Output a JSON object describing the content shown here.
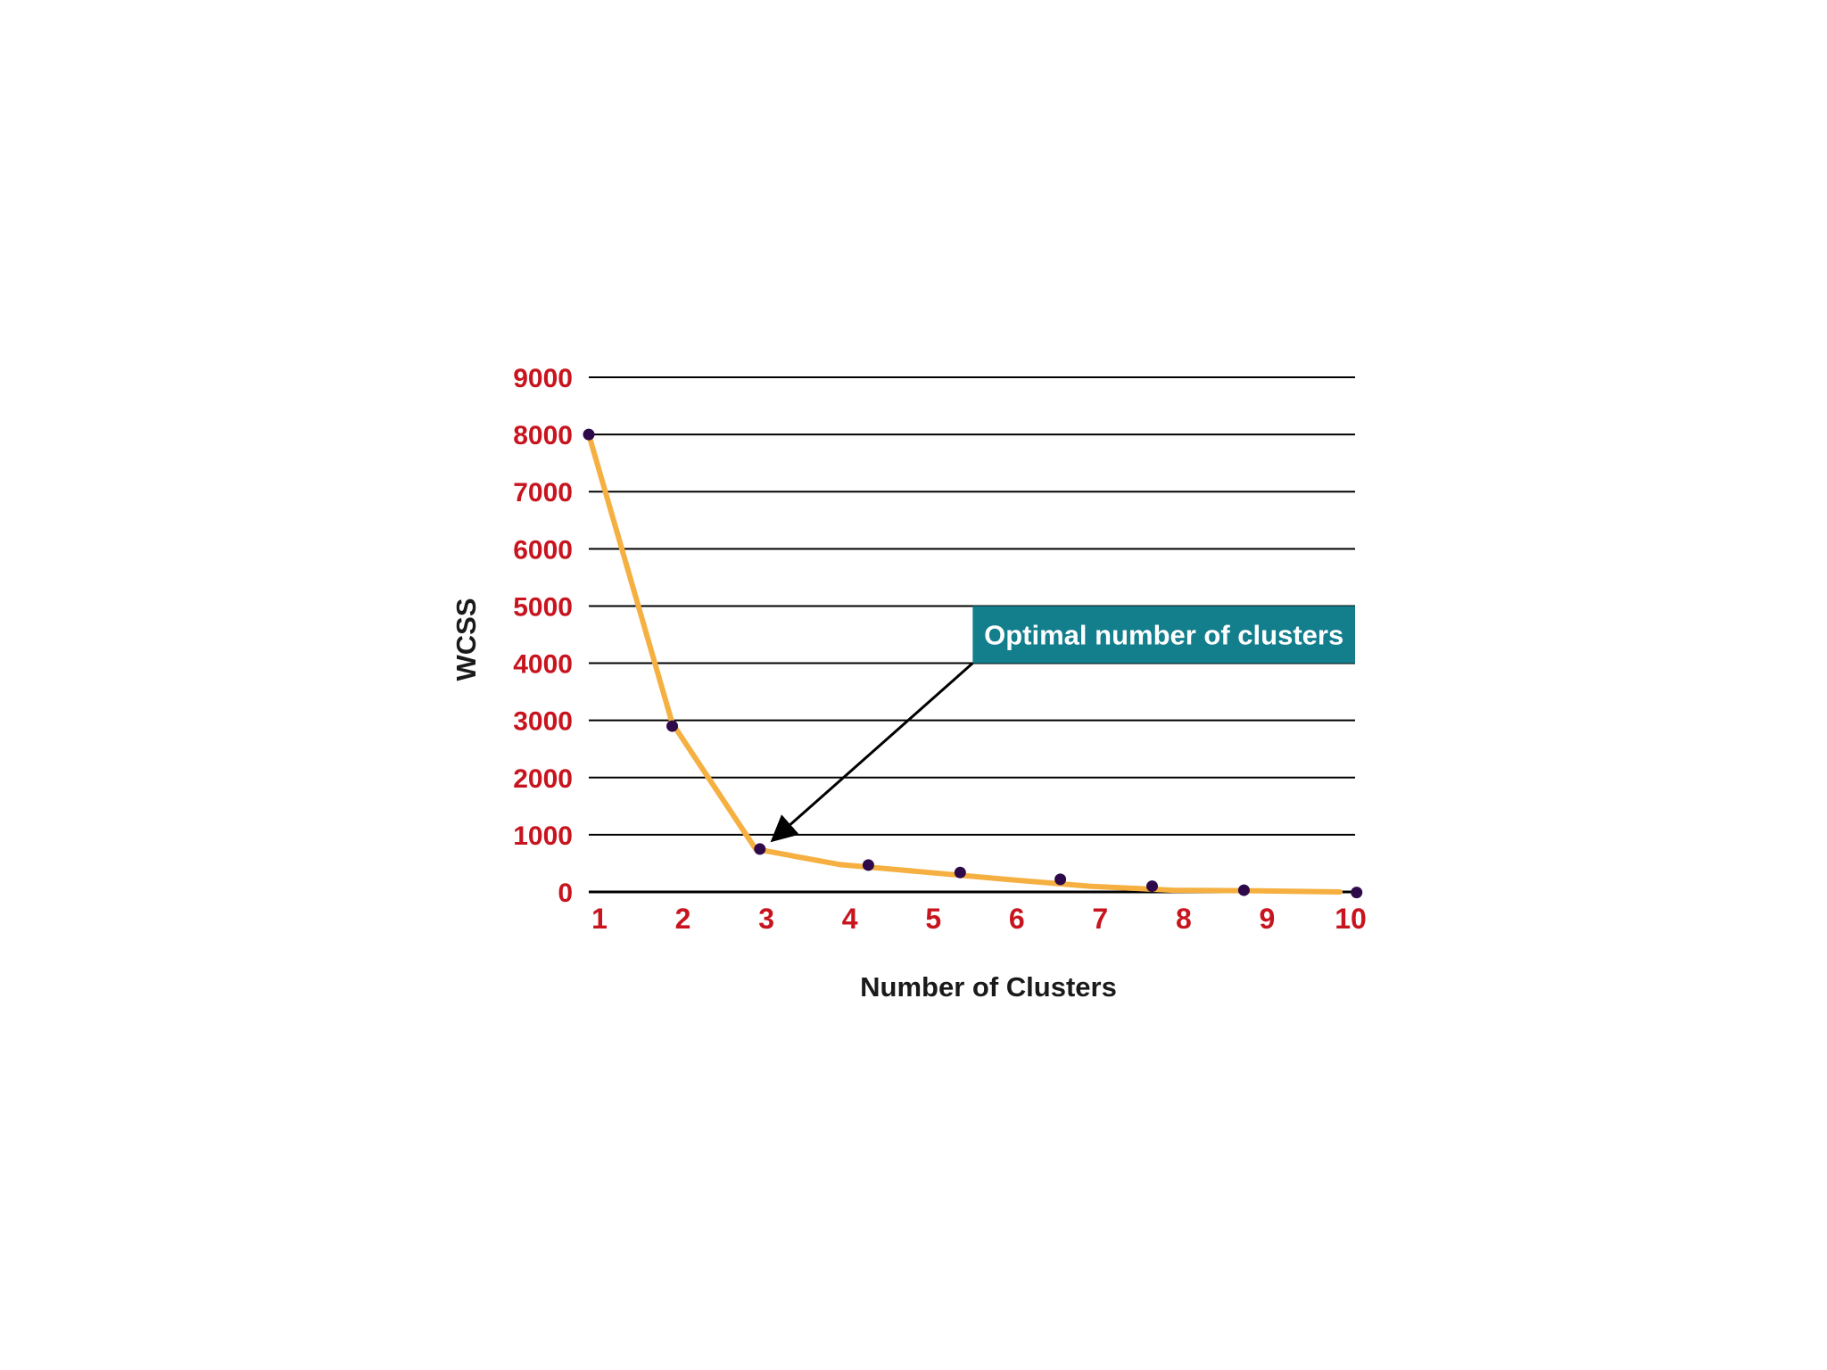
{
  "colors": {
    "background": "#ffffff",
    "gridline": "#000000",
    "tick_label": "#c8141e",
    "line": "#f5b041",
    "marker": "#2e0a4a",
    "callout_bg": "#137e8c",
    "callout_text": "#ffffff",
    "arrow": "#000000",
    "axis_title": "#1a1a1a"
  },
  "chart_data": {
    "type": "line",
    "title": "",
    "xlabel": "Number of Clusters",
    "ylabel": "WCSS",
    "x_ticks": [
      "1",
      "2",
      "3",
      "4",
      "5",
      "6",
      "7",
      "8",
      "9",
      "10"
    ],
    "y_ticks": [
      "0",
      "1000",
      "2000",
      "3000",
      "4000",
      "5000",
      "6000",
      "7000",
      "8000",
      "9000"
    ],
    "xlim": [
      1,
      10
    ],
    "ylim": [
      0,
      9000
    ],
    "grid": "horizontal",
    "series": [
      {
        "x": [
          1,
          2,
          3,
          4,
          5,
          6,
          7,
          8,
          9,
          10
        ],
        "y": [
          8000,
          2950,
          750,
          480,
          350,
          220,
          100,
          30,
          20,
          0
        ],
        "markers": [
          {
            "x": 1.0,
            "y": 8000
          },
          {
            "x": 2.0,
            "y": 2900
          },
          {
            "x": 3.05,
            "y": 750
          },
          {
            "x": 4.35,
            "y": 470
          },
          {
            "x": 5.45,
            "y": 340
          },
          {
            "x": 6.65,
            "y": 220
          },
          {
            "x": 7.75,
            "y": 100
          },
          {
            "x": 8.85,
            "y": 30
          },
          {
            "x": 10.2,
            "y": -10
          }
        ]
      }
    ],
    "annotations": [
      {
        "text": "Optimal number of clusters",
        "box_x_range": [
          5.6,
          10.5
        ],
        "box_y_range": [
          4000,
          5000
        ],
        "arrow_from": {
          "x": 5.6,
          "y": 4000
        },
        "arrow_to": {
          "x": 3.2,
          "y": 900
        }
      }
    ]
  }
}
